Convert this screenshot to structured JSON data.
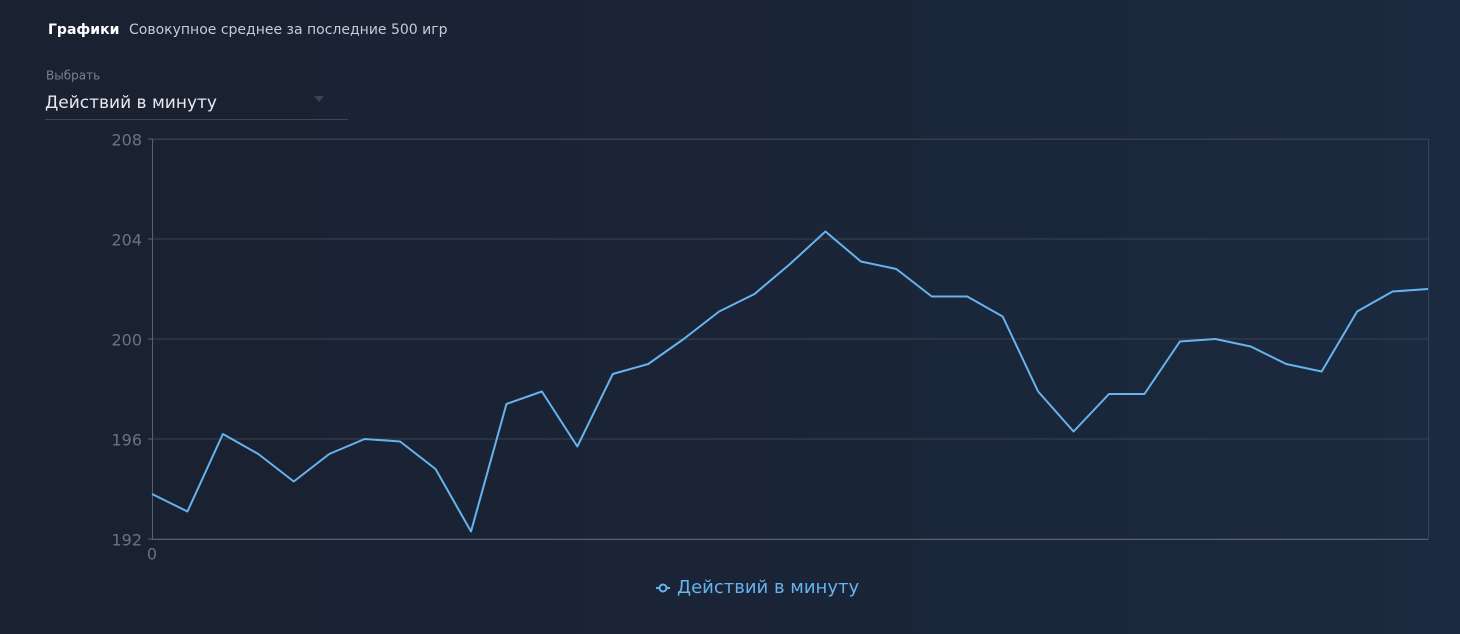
{
  "header": {
    "title": "Графики",
    "subtitle": "Совокупное среднее за последние 500 игр"
  },
  "select": {
    "label": "Выбрать",
    "value": "Действий в минуту"
  },
  "chart_data": {
    "type": "line",
    "x": [
      0,
      1,
      2,
      3,
      4,
      5,
      6,
      7,
      8,
      9,
      10,
      11,
      12,
      13,
      14,
      15,
      16,
      17,
      18,
      19,
      20,
      21,
      22,
      23,
      24,
      25,
      26,
      27,
      28,
      29,
      30,
      31,
      32,
      33,
      34,
      35,
      36
    ],
    "series": [
      {
        "name": "Действий в минуту",
        "color": "#66b3f0",
        "values": [
          193.8,
          193.1,
          196.2,
          195.4,
          194.3,
          195.4,
          196.0,
          195.9,
          194.8,
          192.3,
          197.4,
          197.9,
          195.7,
          198.6,
          199.0,
          200.0,
          201.1,
          201.8,
          203.0,
          204.3,
          203.1,
          202.8,
          201.7,
          201.7,
          200.9,
          197.9,
          196.3,
          197.8,
          197.8,
          199.9,
          200.0,
          199.7,
          199.0,
          198.7,
          201.1,
          201.9,
          202.0
        ]
      }
    ],
    "xlim": [
      0,
      36
    ],
    "xticks": [
      0
    ],
    "ylim": [
      192,
      208
    ],
    "yticks": [
      192,
      196,
      200,
      204,
      208
    ],
    "grid": true
  }
}
